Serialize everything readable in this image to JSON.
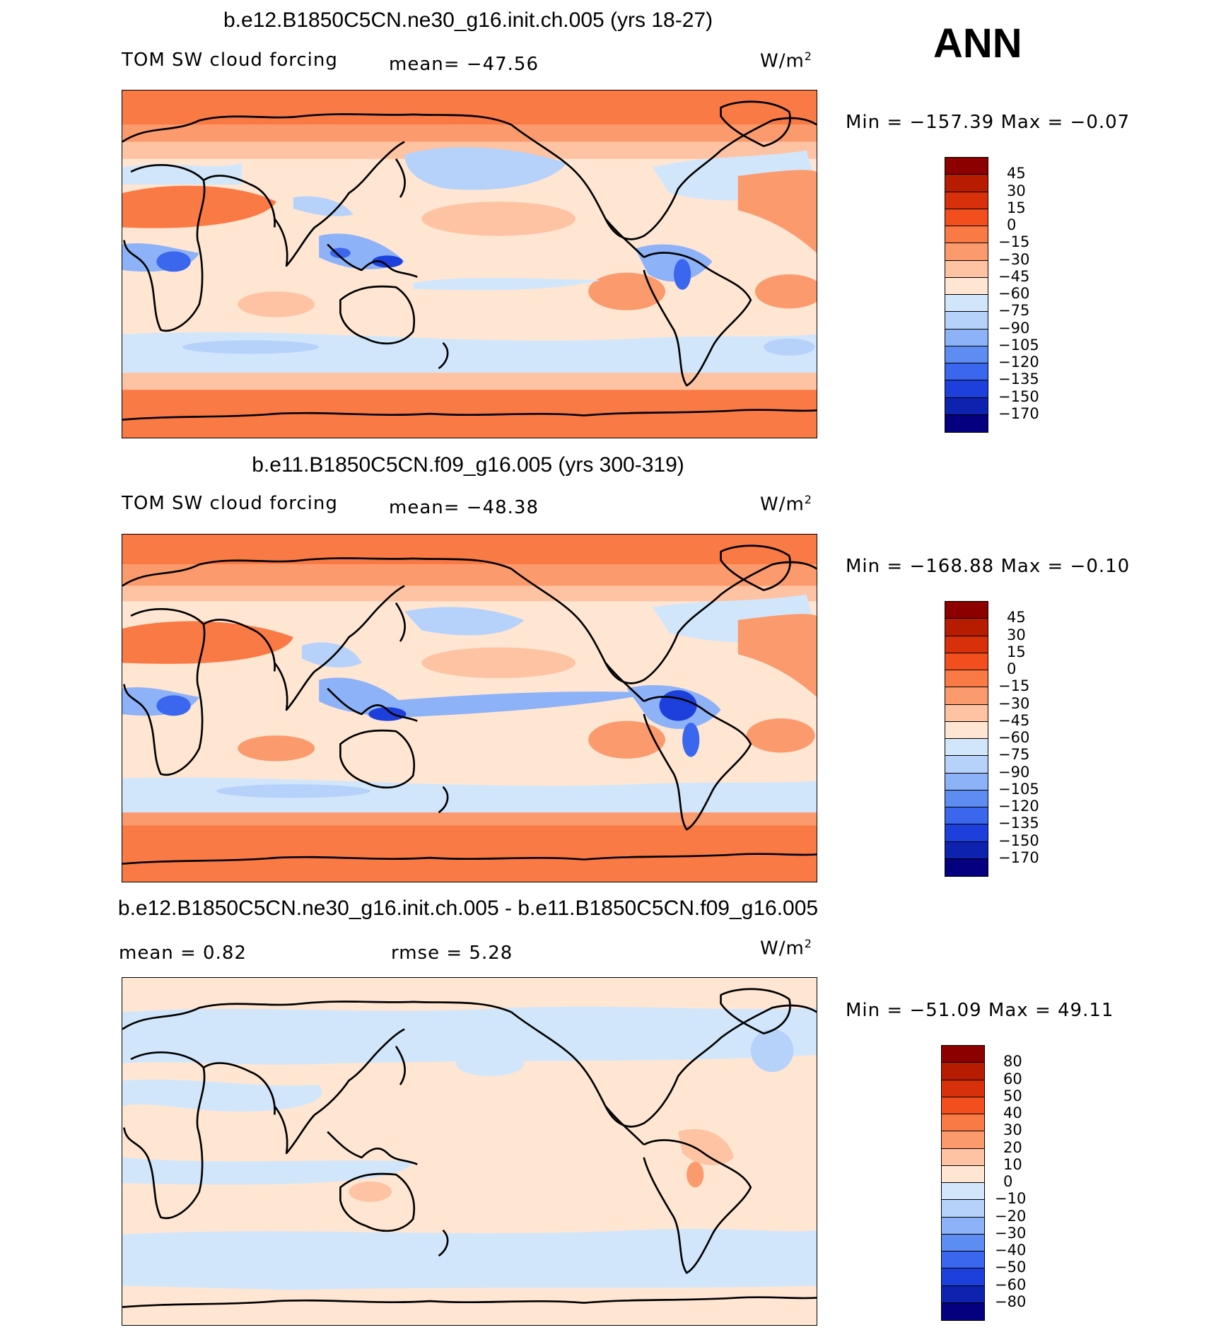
{
  "season": "ANN",
  "panels": [
    {
      "title": "b.e12.B1850C5CN.ne30_g16.init.ch.005 (yrs 18-27)",
      "left_label": "TOM SW cloud forcing",
      "mid_label": "mean= −47.56",
      "units": "W/m",
      "units_sup": "2",
      "minmax": "Min  =  −157.39  Max  =    −0.07",
      "scheme": "model"
    },
    {
      "title": "b.e11.B1850C5CN.f09_g16.005 (yrs 300-319)",
      "left_label": "TOM SW cloud forcing",
      "mid_label": "mean= −48.38",
      "units": "W/m",
      "units_sup": "2",
      "minmax": "Min  =  −168.88  Max  =    −0.10",
      "scheme": "model"
    },
    {
      "title": "b.e12.B1850C5CN.ne30_g16.init.ch.005 - b.e11.B1850C5CN.f09_g16.005",
      "left_label": "mean  =     0.82",
      "mid_label": "rmse  =     5.28",
      "units": "W/m",
      "units_sup": "2",
      "minmax": "Min  =  −51.09  Max  =   49.11",
      "scheme": "diff"
    }
  ],
  "colorbar_model": {
    "labels": [
      "45",
      "30",
      "15",
      "0",
      "−15",
      "−30",
      "−45",
      "−60",
      "−75",
      "−90",
      "−105",
      "−120",
      "−135",
      "−150",
      "−170"
    ],
    "colors": [
      "#8c0000",
      "#b81c00",
      "#d8300a",
      "#f24e1e",
      "#fa7a45",
      "#fb9a6c",
      "#fdc3a3",
      "#fee6d3",
      "#d2e6fb",
      "#b7d2fa",
      "#8eb2f7",
      "#5d8cf2",
      "#3a67ee",
      "#1d40dd",
      "#0e22b0",
      "#04007f"
    ]
  },
  "colorbar_diff": {
    "labels": [
      "80",
      "60",
      "50",
      "40",
      "30",
      "20",
      "10",
      "0",
      "−10",
      "−20",
      "−30",
      "−40",
      "−50",
      "−60",
      "−80"
    ],
    "colors": [
      "#8c0000",
      "#b81c00",
      "#d8300a",
      "#f24e1e",
      "#fa7a45",
      "#fb9a6c",
      "#fdc3a3",
      "#fee6d3",
      "#d2e6fb",
      "#b7d2fa",
      "#8eb2f7",
      "#5d8cf2",
      "#3a67ee",
      "#1d40dd",
      "#0e22b0",
      "#04007f"
    ]
  }
}
